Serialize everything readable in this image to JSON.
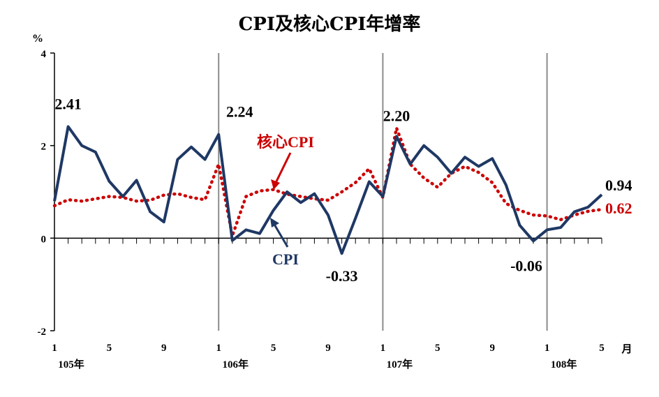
{
  "chart_data": {
    "type": "line",
    "title": "CPI及核心CPI年增率",
    "ylabel": "%",
    "xunit": "月",
    "ylim": [
      -2,
      4
    ],
    "yticks": [
      "-2",
      "0",
      "2",
      "4"
    ],
    "grid": false,
    "x_tick_labels": [
      {
        "index": 0,
        "label": "1"
      },
      {
        "index": 4,
        "label": "5"
      },
      {
        "index": 8,
        "label": "9"
      },
      {
        "index": 12,
        "label": "1"
      },
      {
        "index": 16,
        "label": "5"
      },
      {
        "index": 20,
        "label": "9"
      },
      {
        "index": 24,
        "label": "1"
      },
      {
        "index": 28,
        "label": "5"
      },
      {
        "index": 32,
        "label": "9"
      },
      {
        "index": 36,
        "label": "1"
      },
      {
        "index": 40,
        "label": "5"
      }
    ],
    "year_labels": [
      {
        "index": 0,
        "label": "105年"
      },
      {
        "index": 12,
        "label": "106年"
      },
      {
        "index": 24,
        "label": "107年"
      },
      {
        "index": 36,
        "label": "108年"
      }
    ],
    "year_dividers": [
      12,
      24,
      36
    ],
    "series": [
      {
        "name": "CPI",
        "color": "#1f3864",
        "style": "solid",
        "values": [
          0.8,
          2.41,
          2.0,
          1.86,
          1.23,
          0.9,
          1.25,
          0.57,
          0.35,
          1.7,
          1.97,
          1.7,
          2.24,
          -0.05,
          0.18,
          0.1,
          0.6,
          1.0,
          0.77,
          0.96,
          0.5,
          -0.33,
          0.43,
          1.22,
          0.9,
          2.2,
          1.6,
          2.0,
          1.75,
          1.4,
          1.75,
          1.55,
          1.72,
          1.15,
          0.28,
          -0.06,
          0.18,
          0.23,
          0.57,
          0.67,
          0.94
        ]
      },
      {
        "name": "核心CPI",
        "color": "#cc0000",
        "style": "dotted",
        "values": [
          0.7,
          0.83,
          0.8,
          0.85,
          0.9,
          0.88,
          0.8,
          0.82,
          0.93,
          0.96,
          0.88,
          0.83,
          1.6,
          0.05,
          0.9,
          1.02,
          1.05,
          0.95,
          0.9,
          0.85,
          0.82,
          1.0,
          1.2,
          1.5,
          0.88,
          2.38,
          1.6,
          1.3,
          1.1,
          1.4,
          1.55,
          1.42,
          1.2,
          0.75,
          0.6,
          0.5,
          0.48,
          0.4,
          0.5,
          0.58,
          0.62
        ]
      }
    ],
    "data_labels": [
      {
        "text": "2.41",
        "color": "#000000"
      },
      {
        "text": "2.24",
        "color": "#000000"
      },
      {
        "text": "2.20",
        "color": "#000000"
      },
      {
        "text": "-0.33",
        "color": "#000000"
      },
      {
        "text": "-0.06",
        "color": "#000000"
      },
      {
        "text": "0.94",
        "color": "#000000"
      },
      {
        "text": "0.62",
        "color": "#cc0000"
      }
    ],
    "annotations": {
      "core_label": "核心CPI",
      "cpi_label": "CPI"
    }
  }
}
